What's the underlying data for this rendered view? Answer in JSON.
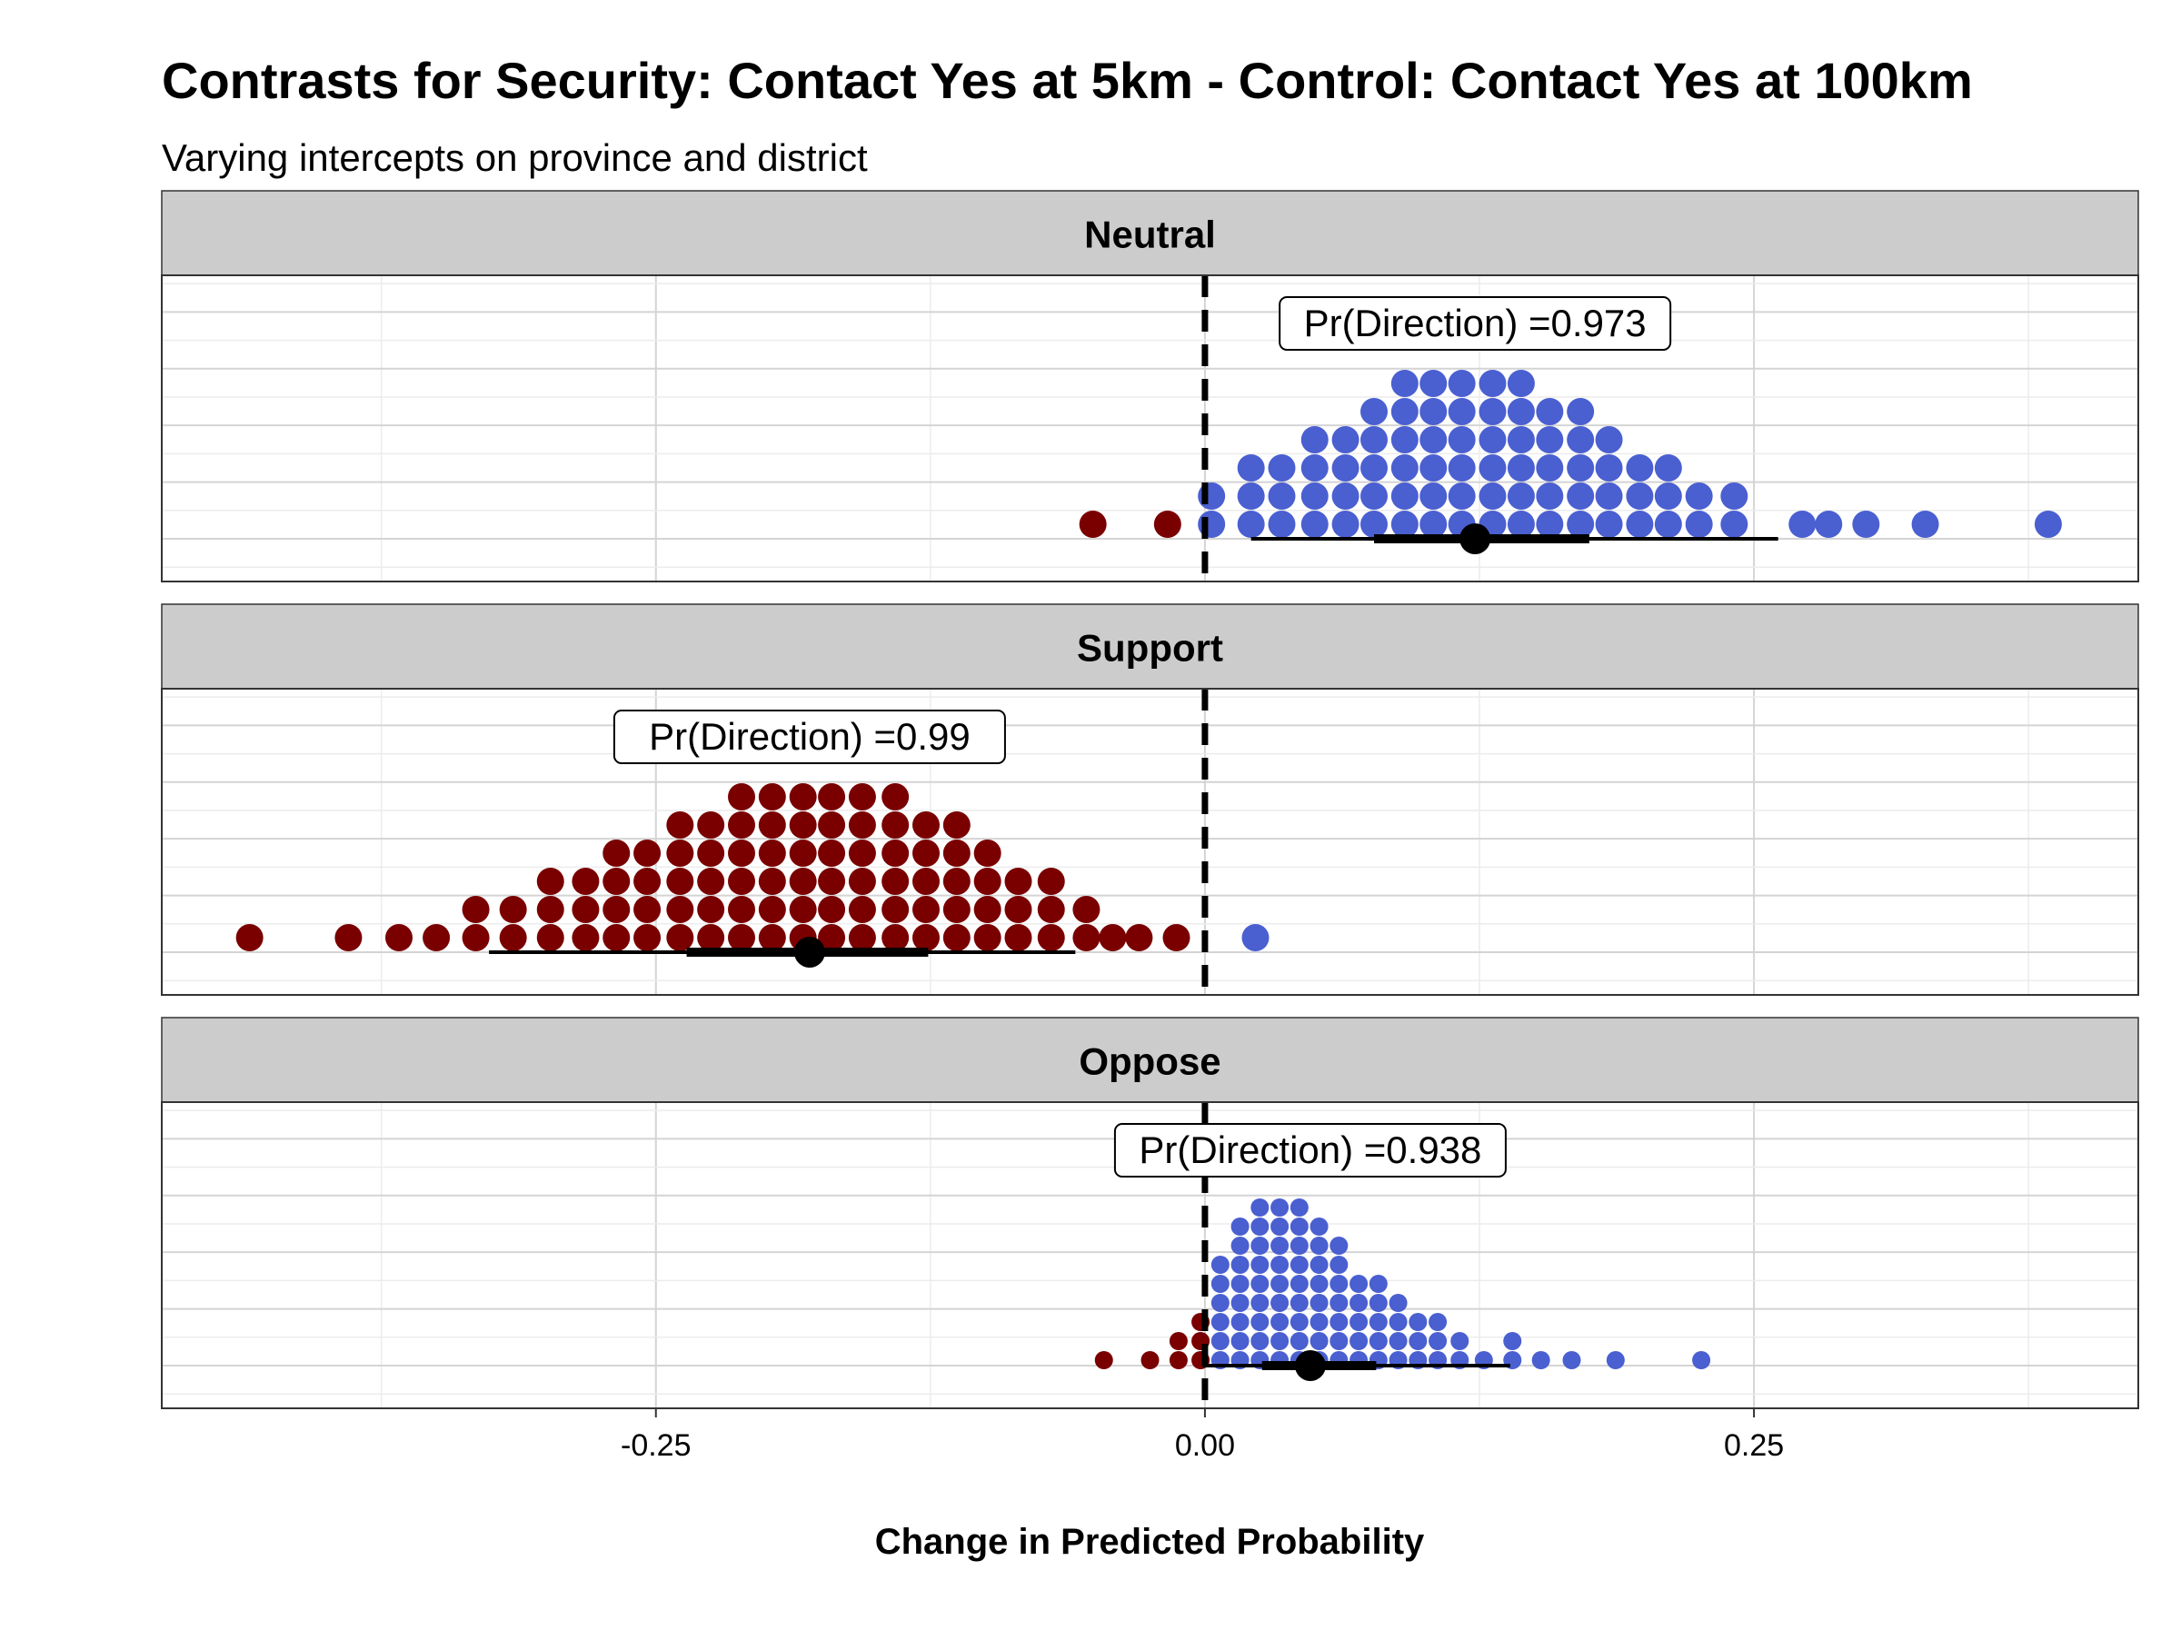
{
  "title": "Contrasts for Security: Contact Yes at 5km - Control: Contact Yes at 100km",
  "subtitle": "Varying intercepts on province and district",
  "chart_data": {
    "type": "scatter",
    "subtype": "dotplot-with-interval",
    "xlabel": "Change in Predicted Probability",
    "xlim": [
      -0.475,
      0.425
    ],
    "xticks": [
      -0.25,
      0.0,
      0.25
    ],
    "xtick_labels": [
      "-0.25",
      "0.00",
      "0.25"
    ],
    "reference_line_x": 0.0,
    "grid": true,
    "colors": {
      "positive": "#4a5fd0",
      "negative": "#7a0000",
      "interval": "#000000",
      "strip": "#cccccc"
    },
    "panels": [
      {
        "label": "Neutral",
        "annotation": "Pr(Direction) =0.973",
        "point_estimate": 0.123,
        "interval_inner": [
          0.077,
          0.175
        ],
        "interval_outer": [
          0.021,
          0.261
        ],
        "dot_size": "large",
        "dot_columns": [
          {
            "x": -0.051,
            "n": 1
          },
          {
            "x": -0.017,
            "n": 1
          },
          {
            "x": 0.003,
            "n": 2
          },
          {
            "x": 0.021,
            "n": 3
          },
          {
            "x": 0.035,
            "n": 3
          },
          {
            "x": 0.05,
            "n": 4
          },
          {
            "x": 0.064,
            "n": 4
          },
          {
            "x": 0.077,
            "n": 5
          },
          {
            "x": 0.091,
            "n": 6
          },
          {
            "x": 0.104,
            "n": 6
          },
          {
            "x": 0.117,
            "n": 6
          },
          {
            "x": 0.131,
            "n": 6
          },
          {
            "x": 0.144,
            "n": 6
          },
          {
            "x": 0.157,
            "n": 5
          },
          {
            "x": 0.171,
            "n": 5
          },
          {
            "x": 0.184,
            "n": 4
          },
          {
            "x": 0.198,
            "n": 3
          },
          {
            "x": 0.211,
            "n": 3
          },
          {
            "x": 0.225,
            "n": 2
          },
          {
            "x": 0.241,
            "n": 2
          },
          {
            "x": 0.272,
            "n": 1
          },
          {
            "x": 0.284,
            "n": 1
          },
          {
            "x": 0.301,
            "n": 1
          },
          {
            "x": 0.328,
            "n": 1
          },
          {
            "x": 0.384,
            "n": 1
          }
        ]
      },
      {
        "label": "Support",
        "annotation": "Pr(Direction) =0.99",
        "point_estimate": -0.18,
        "interval_inner": [
          -0.236,
          -0.126
        ],
        "interval_outer": [
          -0.326,
          -0.059
        ],
        "dot_size": "large",
        "dot_columns": [
          {
            "x": -0.435,
            "n": 1
          },
          {
            "x": -0.39,
            "n": 1
          },
          {
            "x": -0.367,
            "n": 1
          },
          {
            "x": -0.35,
            "n": 1
          },
          {
            "x": -0.332,
            "n": 2
          },
          {
            "x": -0.315,
            "n": 2
          },
          {
            "x": -0.298,
            "n": 3
          },
          {
            "x": -0.282,
            "n": 3
          },
          {
            "x": -0.268,
            "n": 4
          },
          {
            "x": -0.254,
            "n": 4
          },
          {
            "x": -0.239,
            "n": 5
          },
          {
            "x": -0.225,
            "n": 5
          },
          {
            "x": -0.211,
            "n": 6
          },
          {
            "x": -0.197,
            "n": 6
          },
          {
            "x": -0.183,
            "n": 6
          },
          {
            "x": -0.17,
            "n": 6
          },
          {
            "x": -0.156,
            "n": 6
          },
          {
            "x": -0.141,
            "n": 6
          },
          {
            "x": -0.127,
            "n": 5
          },
          {
            "x": -0.113,
            "n": 5
          },
          {
            "x": -0.099,
            "n": 4
          },
          {
            "x": -0.085,
            "n": 3
          },
          {
            "x": -0.07,
            "n": 3
          },
          {
            "x": -0.054,
            "n": 2
          },
          {
            "x": -0.042,
            "n": 1
          },
          {
            "x": -0.03,
            "n": 1
          },
          {
            "x": -0.013,
            "n": 1
          },
          {
            "x": 0.023,
            "n": 1
          }
        ]
      },
      {
        "label": "Oppose",
        "annotation": "Pr(Direction) =0.938",
        "point_estimate": 0.048,
        "interval_inner": [
          0.026,
          0.078
        ],
        "interval_outer": [
          -0.001,
          0.139
        ],
        "dot_size": "small",
        "dot_columns": [
          {
            "x": -0.046,
            "n": 1
          },
          {
            "x": -0.025,
            "n": 1
          },
          {
            "x": -0.012,
            "n": 2
          },
          {
            "x": -0.002,
            "n": 3
          },
          {
            "x": 0.007,
            "n": 6
          },
          {
            "x": 0.016,
            "n": 8
          },
          {
            "x": 0.025,
            "n": 9
          },
          {
            "x": 0.034,
            "n": 9
          },
          {
            "x": 0.043,
            "n": 9
          },
          {
            "x": 0.052,
            "n": 8
          },
          {
            "x": 0.061,
            "n": 7
          },
          {
            "x": 0.07,
            "n": 5
          },
          {
            "x": 0.079,
            "n": 5
          },
          {
            "x": 0.088,
            "n": 4
          },
          {
            "x": 0.097,
            "n": 3
          },
          {
            "x": 0.106,
            "n": 3
          },
          {
            "x": 0.116,
            "n": 2
          },
          {
            "x": 0.127,
            "n": 1
          },
          {
            "x": 0.14,
            "n": 2
          },
          {
            "x": 0.153,
            "n": 1
          },
          {
            "x": 0.167,
            "n": 1
          },
          {
            "x": 0.187,
            "n": 1
          },
          {
            "x": 0.226,
            "n": 1
          }
        ]
      }
    ]
  }
}
